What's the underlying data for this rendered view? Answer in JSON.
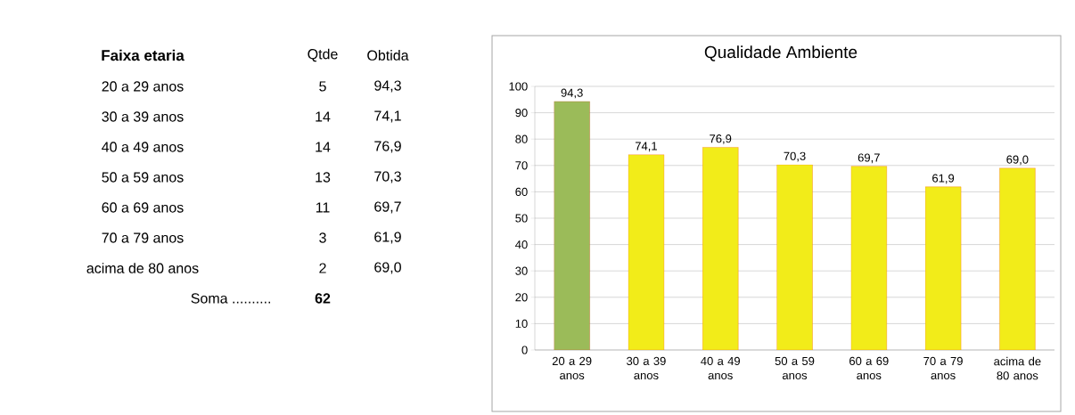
{
  "chart_data": [
    {
      "type": "other",
      "xlabel": "Faixa etaria",
      "categories": [
        "20 a 29 anos",
        "30 a 39 anos",
        "40 a 49 anos",
        "50 a 59 anos",
        "60 a 69 anos",
        "70 a 79 anos",
        "acima de 80 anos"
      ],
      "annotations": [
        "Qtde",
        "Obtida",
        "5",
        "94,3",
        "14",
        "74,1",
        "14",
        "76,9",
        "13",
        "70,3",
        "11",
        "69,7",
        "3",
        "61,9",
        "2",
        "69,0",
        "Soma ..........",
        "62"
      ]
    },
    {
      "type": "bar",
      "title": "Qualidade Ambiente",
      "categories": [
        "20 a 29 anos",
        "30 a 39 anos",
        "40 a 49 anos",
        "50 a 59 anos",
        "60 a 69 anos",
        "70 a 79 anos",
        "acima de 80 anos"
      ],
      "values": [
        94.3,
        74.1,
        76.9,
        70.3,
        69.7,
        61.9,
        69.0
      ],
      "value_labels": [
        "94,3",
        "74,1",
        "76,9",
        "70,3",
        "69,7",
        "61,9",
        "69,0"
      ],
      "colors": [
        "#9bbb59",
        "#f2ec19",
        "#f2ec19",
        "#f2ec19",
        "#f2ec19",
        "#f2ec19",
        "#f2ec19"
      ],
      "ylim": [
        0,
        100
      ],
      "yticks": [
        0,
        10,
        20,
        30,
        40,
        50,
        60,
        70,
        80,
        90,
        100
      ],
      "grid": "y"
    }
  ]
}
